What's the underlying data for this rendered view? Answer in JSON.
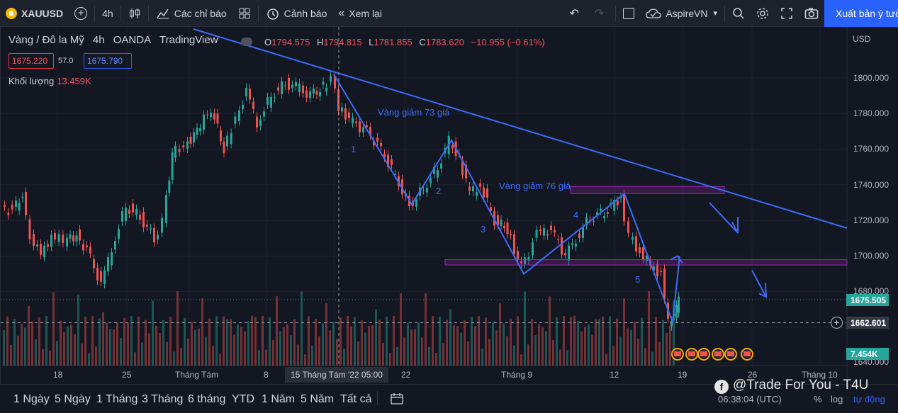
{
  "toolbar": {
    "symbol": "XAUUSD",
    "add_label": "+",
    "interval": "4h",
    "candle_icon": "candlestick-icon",
    "indicators_label": "Các chỉ báo",
    "templates_icon": "grid-icon",
    "alerts_label": "Cảnh báo",
    "replay_label": "Xem lại",
    "undo_icon": "undo-icon",
    "redo_icon": "redo-icon",
    "layout_icon": "rectangle-icon",
    "account_label": "AspireVN",
    "search_icon": "search-icon",
    "settings_icon": "gear-icon",
    "fullscreen_icon": "fullscreen-icon",
    "snapshot_icon": "camera-icon",
    "export_label": "Xuất bản ý tưởng"
  },
  "legend": {
    "title": "Vàng / Đô la Mỹ",
    "interval": "4h",
    "exchange": "OANDA",
    "source": "TradingView",
    "o_key": "O",
    "o_val": "1794.575",
    "h_key": "H",
    "h_val": "1794.815",
    "l_key": "L",
    "l_val": "1781.855",
    "c_key": "C",
    "c_val": "1783.620",
    "change": "−10.955 (−0.61%)",
    "sell_price": "1675.220",
    "spread": "57.0",
    "buy_price": "1675.790",
    "volume_label": "Khối lượng",
    "volume_value": "13.459K"
  },
  "price_axis": {
    "currency": "USD",
    "ticks": [
      "1800.000",
      "1780.000",
      "1760.000",
      "1740.000",
      "1720.000",
      "1700.000",
      "1680.000",
      "1640.000"
    ],
    "last_price": "1675.505",
    "crosshair_price": "1662.601",
    "volume_tag": "7.454K",
    "last_color": "#26a69a",
    "volume_color": "#26a69a"
  },
  "time_axis": {
    "ticks": [
      "18",
      "25",
      "Tháng Tám",
      "8",
      "22",
      "Tháng 9",
      "12",
      "19",
      "26",
      "Tháng 10"
    ],
    "cursor_label": "15 Tháng Tám '22   05:00"
  },
  "annotations": {
    "drop1": "Vàng giảm 73 giá",
    "drop2": "Vàng giảm 76 giá",
    "wave1": "1",
    "wave2": "2",
    "wave3": "3",
    "wave4": "4",
    "wave5": "5"
  },
  "bottombar": {
    "ranges": [
      "1 Ngày",
      "5 Ngày",
      "1 Tháng",
      "3 Tháng",
      "6 tháng",
      "YTD",
      "1 Năm",
      "5 Năm",
      "Tất cả"
    ],
    "compare_icon": "calendar-range-icon",
    "brand": "@Trade For You - T4U",
    "clock": "06:38:04 (UTC)",
    "percent": "%",
    "log": "log",
    "auto": "tự động"
  },
  "chart_data": {
    "type": "candlestick",
    "symbol": "XAUUSD",
    "ylim": [
      1637,
      1822
    ],
    "description_levels": {
      "resistance_zone": [
        1735,
        1739
      ],
      "support_zone": [
        1695,
        1698
      ]
    },
    "wave_points": [
      {
        "label": "1",
        "price": 1760
      },
      {
        "label": "2",
        "price": 1729
      },
      {
        "label": "3",
        "price": 1765
      },
      {
        "label": "4",
        "price": 1690
      },
      {
        "label": "5",
        "price": 1735
      }
    ]
  }
}
